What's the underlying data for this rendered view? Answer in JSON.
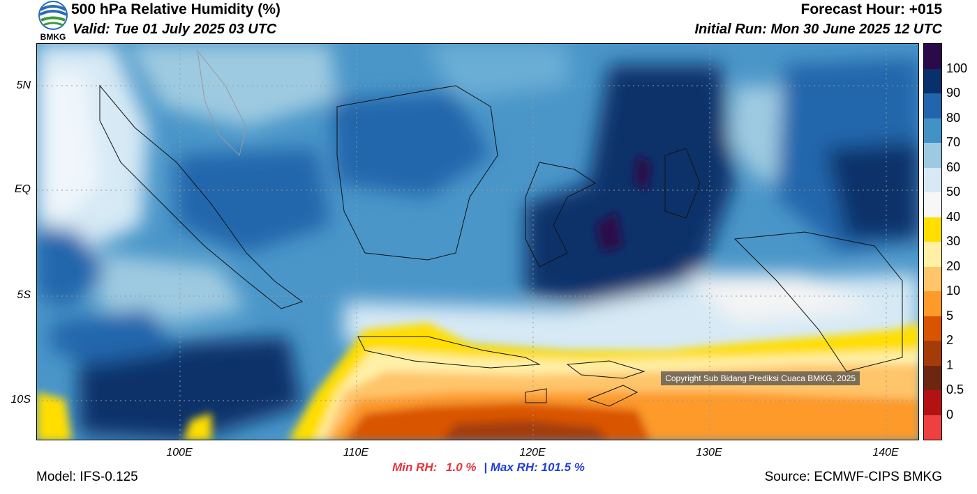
{
  "header": {
    "title": "500 hPa Relative Humidity (%)",
    "valid": "Valid: Tue 01 July 2025 03 UTC",
    "forecast_hour": "Forecast Hour: +015",
    "initial_run": "Initial Run: Mon 30 June 2025 12 UTC"
  },
  "logo": {
    "text": "BMKG",
    "icon": "bmkg-logo-icon"
  },
  "axes": {
    "lat_labels": [
      "5N",
      "EQ",
      "5S",
      "10S"
    ],
    "lon_labels": [
      "100E",
      "110E",
      "120E",
      "130E",
      "140E"
    ]
  },
  "colorbar": {
    "labels": [
      "100",
      "90",
      "80",
      "70",
      "60",
      "50",
      "40",
      "30",
      "20",
      "10",
      "5",
      "2",
      "1",
      "0.5",
      "0"
    ],
    "colors": [
      "#2b0a4a",
      "#08306b",
      "#2166ac",
      "#4292c6",
      "#9ecae1",
      "#d6e9f5",
      "#f7f7f7",
      "#ffde00",
      "#fff0a8",
      "#fec56a",
      "#fd9a2a",
      "#d95400",
      "#a33c08",
      "#6e2610",
      "#b31212",
      "#ef4040"
    ]
  },
  "stats": {
    "min_label": "Min RH:",
    "min_value": "1.0 %",
    "separator": "|",
    "max_label": "Max RH:",
    "max_value": "101.5 %",
    "min_color": "#e8323c",
    "max_color": "#2140d8"
  },
  "footer": {
    "model": "Model: IFS-0.125",
    "source": "Source: ECMWF-CIPS BMKG",
    "copyright": "Copyright Sub Bidang Prediksi Cuaca BMKG, 2025"
  }
}
